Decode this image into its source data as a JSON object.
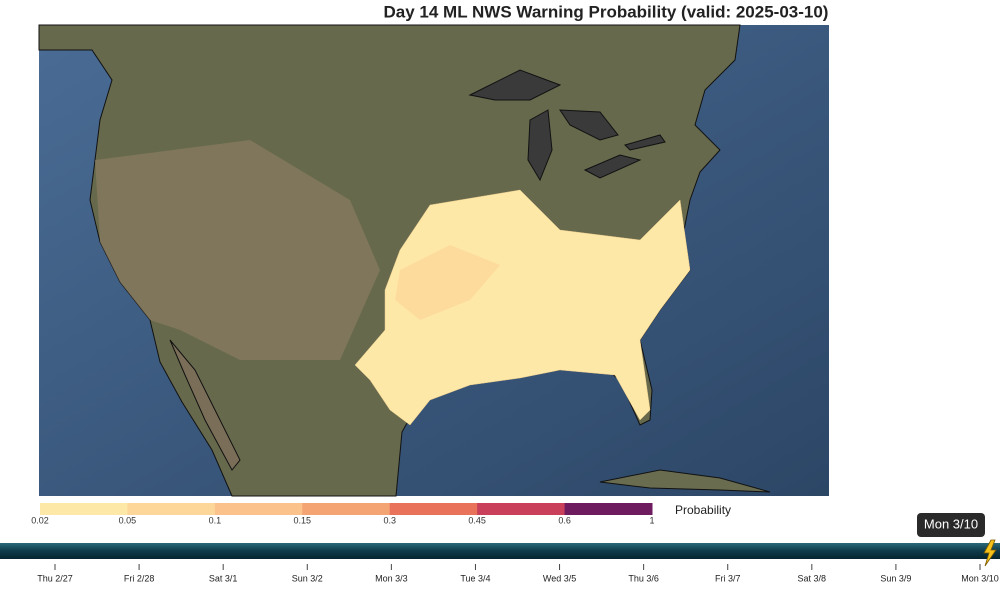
{
  "header": {
    "title": "Day 14 ML NWS Warning Probability (valid: 2025-03-10)"
  },
  "colorbar": {
    "label": "Probability",
    "ticks": [
      0.02,
      0.05,
      0.1,
      0.15,
      0.3,
      0.45,
      0.6,
      1
    ],
    "colors": [
      "#fee8a8",
      "#fdd79a",
      "#fbc38b",
      "#f4a373",
      "#e8735a",
      "#c8405a",
      "#6e1b60"
    ]
  },
  "timeline": {
    "labels": [
      "Thu 2/27",
      "Fri 2/28",
      "Sat 3/1",
      "Sun 3/2",
      "Mon 3/3",
      "Tue 3/4",
      "Wed 3/5",
      "Thu 3/6",
      "Fri 3/7",
      "Sat 3/8",
      "Sun 3/9",
      "Mon 3/10"
    ],
    "current": "Mon 3/10"
  }
}
